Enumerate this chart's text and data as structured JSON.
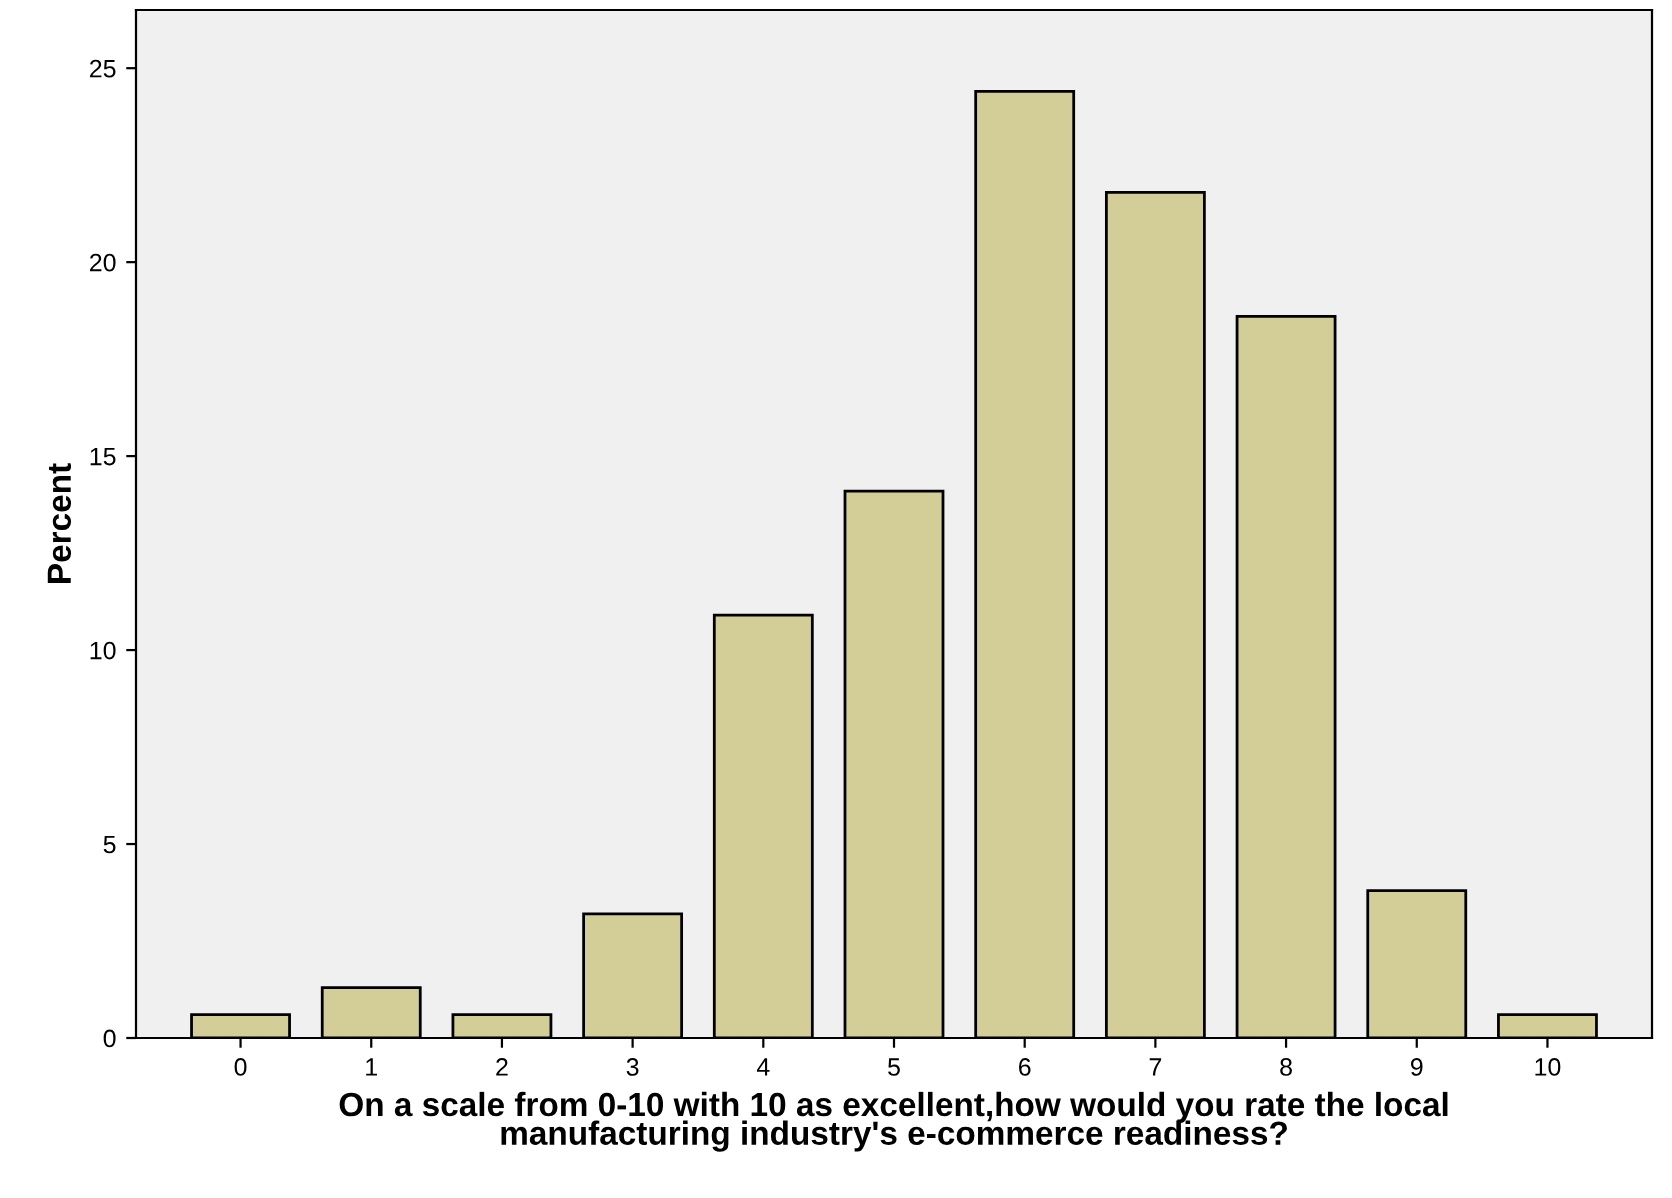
{
  "chart_data": {
    "type": "bar",
    "xlabel": "On a scale from 0-10 with 10 as excellent,how would you rate the local\nmanufacturing industry's e-commerce readiness?",
    "ylabel": "Percent",
    "categories": [
      "0",
      "1",
      "2",
      "3",
      "4",
      "5",
      "6",
      "7",
      "8",
      "9",
      "10"
    ],
    "values": [
      0.6,
      1.3,
      0.6,
      3.2,
      10.9,
      14.1,
      24.4,
      21.8,
      18.6,
      3.8,
      0.6
    ],
    "color": "#d3ce97",
    "ylim": [
      0,
      26.5
    ],
    "yticks": [
      0,
      5,
      10,
      15,
      20,
      25
    ],
    "grid": false,
    "legend": false
  }
}
